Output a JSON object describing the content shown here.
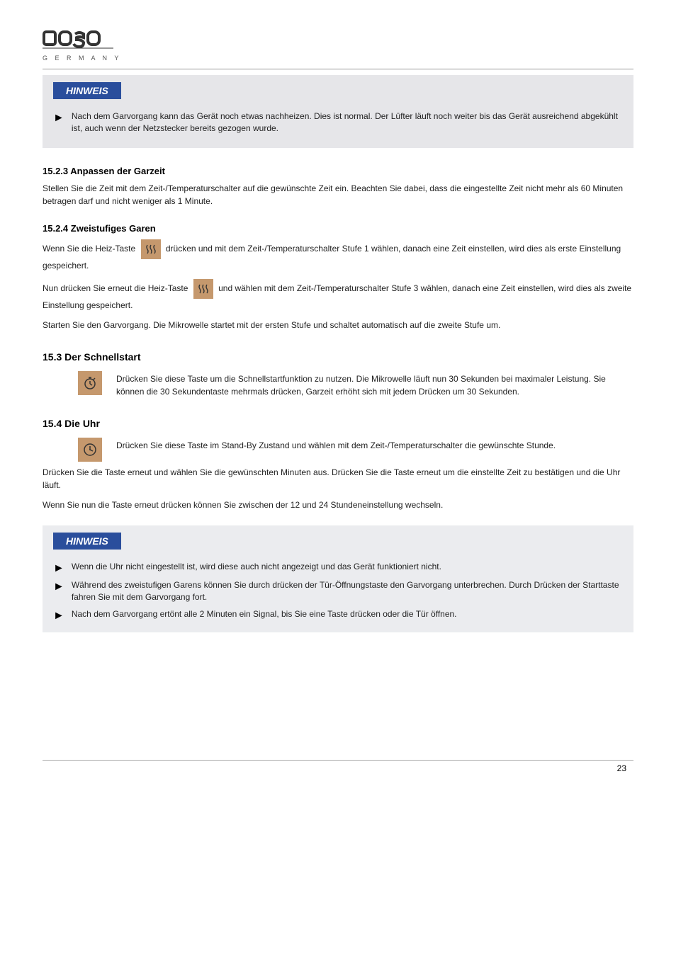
{
  "logo": {
    "brand": "caso",
    "subtitle": "G E R M A N Y"
  },
  "hinweis1": {
    "label": "HINWEIS",
    "items": [
      "Nach dem Garvorgang kann das Gerät noch etwas nachheizen. Dies ist normal. Der Lüfter läuft noch weiter bis das Gerät ausreichend abgekühlt ist, auch wenn der Netzstecker bereits gezogen wurde."
    ]
  },
  "sections": [
    {
      "type": "subsection",
      "number": "15.2.3",
      "title": "Anpassen der Garzeit",
      "paragraphs": [
        "Stellen Sie die Zeit mit dem Zeit-/Temperaturschalter auf die gewünschte Zeit ein. Beachten Sie dabei, dass die eingestellte Zeit nicht mehr als 60 Minuten betragen darf und nicht weniger als 1 Minute."
      ]
    },
    {
      "type": "subsection",
      "number": "15.2.4",
      "title": "Zweistufiges Garen",
      "paragraphs_with_icon1": "Wenn Sie die Heiz-Taste {ICON_HEAT} drücken und mit dem Zeit-/Temperaturschalter Stufe 1 wählen, danach eine Zeit einstellen, wird dies als erste Einstellung gespeichert.",
      "paragraphs_with_icon2": "Nun drücken Sie erneut die Heiz-Taste {ICON_HEAT} und wählen mit dem Zeit-/Temperaturschalter Stufe 3 wählen, danach eine Zeit einstellen, wird dies als zweite Einstellung gespeichert.",
      "paragraphs_after": [
        "Starten Sie den Garvorgang. Die Mikrowelle startet mit der ersten Stufe und schaltet automatisch auf die zweite Stufe um."
      ]
    },
    {
      "type": "section",
      "number": "15.3",
      "title": "Der Schnellstart",
      "icon_items": [
        {
          "icon": "timer",
          "text": "Drücken Sie diese Taste um die Schnellstartfunktion zu nutzen. Die Mikrowelle läuft nun 30 Sekunden bei maximaler Leistung. Sie können die 30 Sekundentaste mehrmals drücken, Garzeit erhöht sich mit jedem Drücken um 30 Sekunden."
        }
      ]
    },
    {
      "type": "section",
      "number": "15.4",
      "title": "Die Uhr",
      "icon_items": [
        {
          "icon": "clock",
          "text": "Drücken Sie diese Taste im Stand-By Zustand und wählen mit dem Zeit-/Temperaturschalter die gewünschte Stunde."
        }
      ],
      "paragraphs_after": [
        "Drücken Sie die Taste erneut und wählen Sie die gewünschten Minuten aus. Drücken Sie die Taste erneut um die einstellte Zeit zu bestätigen und die Uhr läuft.",
        "Wenn Sie nun die Taste erneut drücken können Sie zwischen der 12 und 24 Stundeneinstellung wechseln."
      ]
    }
  ],
  "hinweis2": {
    "label": "HINWEIS",
    "items": [
      "Wenn die Uhr nicht eingestellt ist, wird diese auch nicht angezeigt und das Gerät funktioniert nicht.",
      "Während des zweistufigen Garens können Sie durch drücken der Tür-Öffnungstaste den Garvorgang unterbrechen. Durch Drücken der Starttaste fahren Sie mit dem Garvorgang fort.",
      "Nach dem Garvorgang ertönt alle 2 Minuten ein Signal, bis Sie eine Taste drücken oder die Tür öffnen."
    ]
  },
  "page_number": "23"
}
